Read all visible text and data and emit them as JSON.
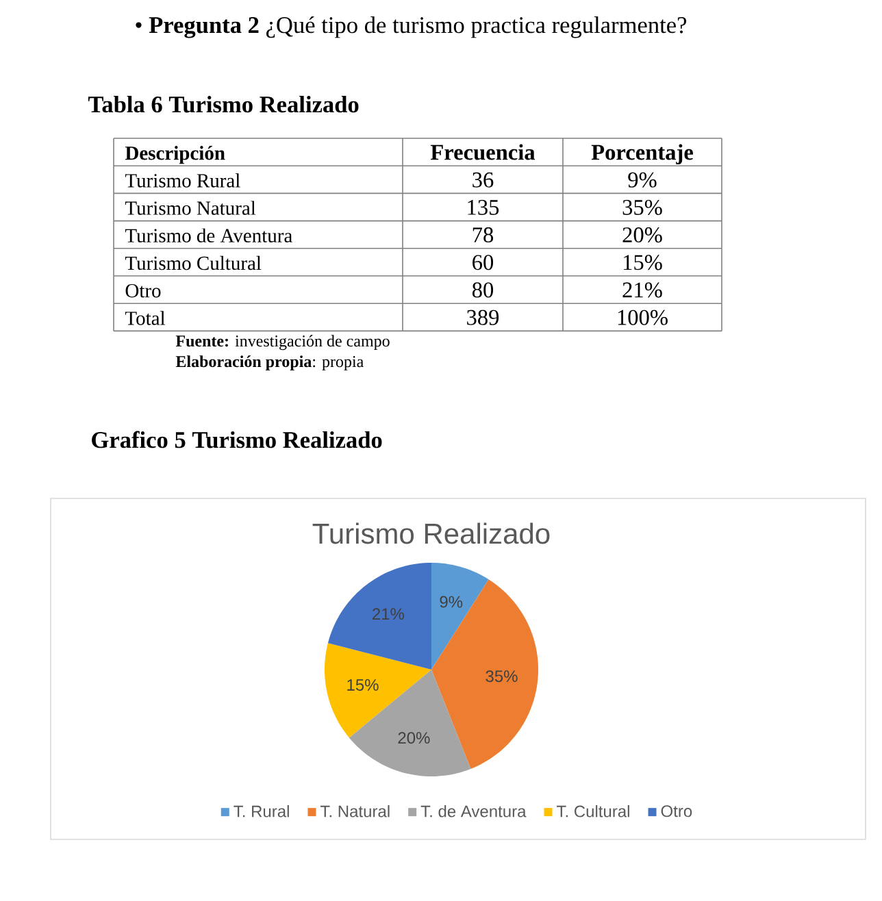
{
  "chart_data": [
    {
      "type": "other",
      "title": "• **Pregunta 2** ¿Qué tipo de turismo practica regularmente?",
      "subtitle": "Tabla 6 Turismo Realizado",
      "annotations": [
        "Descripción",
        "Frecuencia",
        "Porcentaje",
        "Turismo Rural",
        "36",
        "9%",
        "Turismo Natural",
        "135",
        "35%",
        "Turismo de Aventura",
        "78",
        "20%",
        "Turismo Cultural",
        "60",
        "15%",
        "Otro",
        "80",
        "21%",
        "Total",
        "389",
        "100%",
        "**Fuente:** investigación de campo",
        "**Elaboración propia**: propia"
      ]
    },
    {
      "type": "pie",
      "title": "Turismo Realizado",
      "categories": [
        "T. Rural",
        "T. Natural",
        "T. de Aventura",
        "T. Cultural",
        "Otro"
      ],
      "values": [
        9,
        35,
        20,
        15,
        21
      ],
      "colors": [
        "#5b9bd5",
        "#ed7d31",
        "#a5a5a5",
        "#ffc000",
        "#4472c4"
      ],
      "value_labels": [
        "9%",
        "35%",
        "20%",
        "15%",
        "21%"
      ],
      "legend": "bottom",
      "annotations": [
        "Grafico 5 Turismo Realizado"
      ]
    }
  ]
}
